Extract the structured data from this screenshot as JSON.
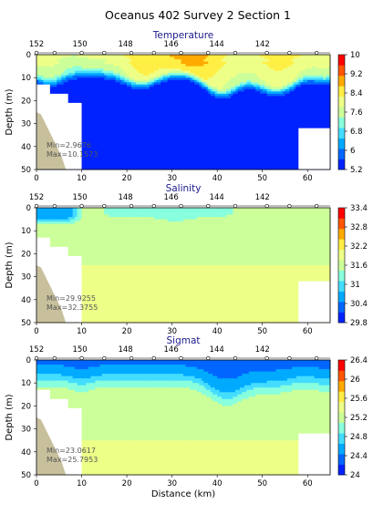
{
  "title": "Oceanus 402 Survey 2 Section 1",
  "chart_data": [
    {
      "type": "heatmap",
      "title": "Temperature",
      "xlabel": "",
      "ylabel": "Depth (m)",
      "xlim": [
        0,
        65
      ],
      "ylim": [
        50,
        0
      ],
      "xticks": [
        "0",
        "10",
        "20",
        "30",
        "40",
        "50",
        "60"
      ],
      "yticks": [
        "0",
        "10",
        "20",
        "30",
        "40",
        "50"
      ],
      "top_ticks": [
        "152",
        "150",
        "148",
        "146",
        "144",
        "142"
      ],
      "colorbar_ticks": [
        "10",
        "9.2",
        "8.4",
        "7.6",
        "6.8",
        "6",
        "5.2"
      ],
      "colorbar_range": [
        5.2,
        10
      ],
      "stats": [
        "Min=2.9676",
        "Max=10.1573"
      ]
    },
    {
      "type": "heatmap",
      "title": "Salinity",
      "xlabel": "",
      "ylabel": "Depth (m)",
      "xlim": [
        0,
        65
      ],
      "ylim": [
        50,
        0
      ],
      "xticks": [
        "0",
        "10",
        "20",
        "30",
        "40",
        "50",
        "60"
      ],
      "yticks": [
        "0",
        "10",
        "20",
        "30",
        "40",
        "50"
      ],
      "top_ticks": [
        "152",
        "150",
        "148",
        "146",
        "144",
        "142"
      ],
      "colorbar_ticks": [
        "33.4",
        "32.8",
        "32.2",
        "31.6",
        "31",
        "30.4",
        "29.8"
      ],
      "colorbar_range": [
        29.8,
        33.4
      ],
      "stats": [
        "Min=29.9255",
        "Max=32.3755"
      ]
    },
    {
      "type": "heatmap",
      "title": "Sigmat",
      "xlabel": "Distance (km)",
      "ylabel": "Depth (m)",
      "xlim": [
        0,
        65
      ],
      "ylim": [
        50,
        0
      ],
      "xticks": [
        "0",
        "10",
        "20",
        "30",
        "40",
        "50",
        "60"
      ],
      "yticks": [
        "0",
        "10",
        "20",
        "30",
        "40",
        "50"
      ],
      "top_ticks": [
        "152",
        "150",
        "148",
        "146",
        "144",
        "142"
      ],
      "colorbar_ticks": [
        "26.4",
        "26",
        "25.6",
        "25.2",
        "24.8",
        "24.4",
        "24"
      ],
      "colorbar_range": [
        24,
        26.4
      ],
      "stats": [
        "Min=23.0617",
        "Max=25.7953"
      ]
    }
  ],
  "palette": [
    "#0022ff",
    "#0066ff",
    "#00aaff",
    "#44ddff",
    "#88ffdd",
    "#ccff99",
    "#eeff88",
    "#ffee44",
    "#ffaa00",
    "#ff5500",
    "#ff0000"
  ],
  "colors": {
    "seabed": "#c8c09c",
    "no_data": "#ffffff",
    "title": "#1a1a8c"
  }
}
